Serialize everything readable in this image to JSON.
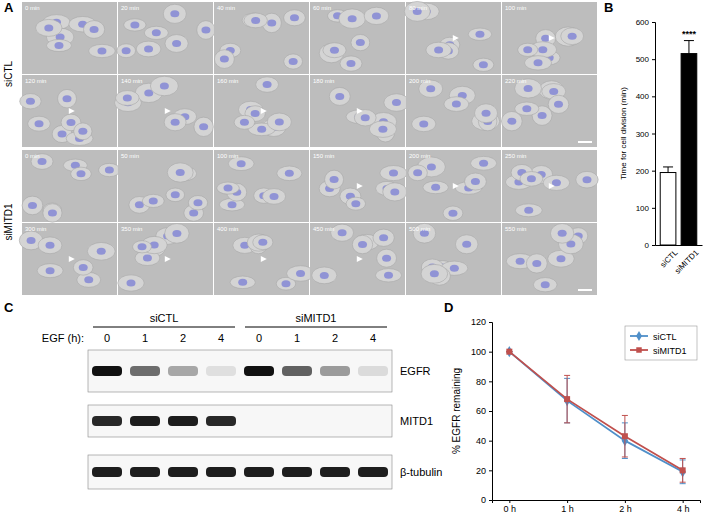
{
  "panels": [
    "A",
    "B",
    "C",
    "D"
  ],
  "micrographs": [
    {
      "label": "siCTL",
      "times": [
        "0 min",
        "20 min",
        "40 min",
        "60 min",
        "80 min",
        "100 min",
        "120 min",
        "140 min",
        "160 min",
        "180 min",
        "200 min",
        "220 min"
      ]
    },
    {
      "label": "siMITD1",
      "times": [
        "0 min",
        "50 min",
        "100 min",
        "150 min",
        "200 min",
        "250 min",
        "300 min",
        "350 min",
        "400 min",
        "450 min",
        "500 min",
        "550 min"
      ]
    }
  ],
  "blot": {
    "groups": [
      "siCTL",
      "siMITD1"
    ],
    "treatment_label": "EGF (h):",
    "lanes": [
      0,
      1,
      2,
      4,
      0,
      1,
      2,
      4
    ],
    "rows": [
      {
        "name": "EGFR",
        "intensities": [
          1,
          0.6,
          0.35,
          0.1,
          1,
          0.65,
          0.4,
          0.12
        ]
      },
      {
        "name": "MITD1",
        "intensities": [
          0.9,
          0.95,
          0.95,
          0.9,
          0,
          0,
          0,
          0
        ]
      },
      {
        "name": "β-tubulin",
        "intensities": [
          0.95,
          0.95,
          0.95,
          0.95,
          0.95,
          0.95,
          0.95,
          0.95
        ]
      }
    ]
  },
  "chart_data": [
    {
      "type": "bar",
      "categories": [
        "siCTL",
        "siMITD1"
      ],
      "values": [
        195,
        515
      ],
      "errors": [
        15,
        35
      ],
      "colors": [
        "#ffffff",
        "#000000"
      ],
      "ylim": [
        0,
        600
      ],
      "yticks": [
        0,
        100,
        200,
        300,
        400,
        500,
        600
      ],
      "y_label": "Time for cell division (min)",
      "annotations": [
        "****"
      ]
    },
    {
      "type": "line",
      "categories": [
        "0 h",
        "1 h",
        "2 h",
        "4 h"
      ],
      "series": [
        {
          "name": "siCTL",
          "color": "#4f8fc9",
          "marker": "diamond",
          "values": [
            100,
            67,
            40,
            19
          ],
          "errors": [
            0,
            15,
            12,
            8
          ]
        },
        {
          "name": "siMITD1",
          "color": "#c0504d",
          "marker": "square",
          "values": [
            100,
            68,
            43,
            20
          ],
          "errors": [
            0,
            16,
            14,
            8
          ]
        }
      ],
      "ylim": [
        0,
        120
      ],
      "yticks": [
        0,
        20,
        40,
        60,
        80,
        100,
        120
      ],
      "y_label": "% EGFR remaining",
      "legend": "upper right"
    }
  ]
}
